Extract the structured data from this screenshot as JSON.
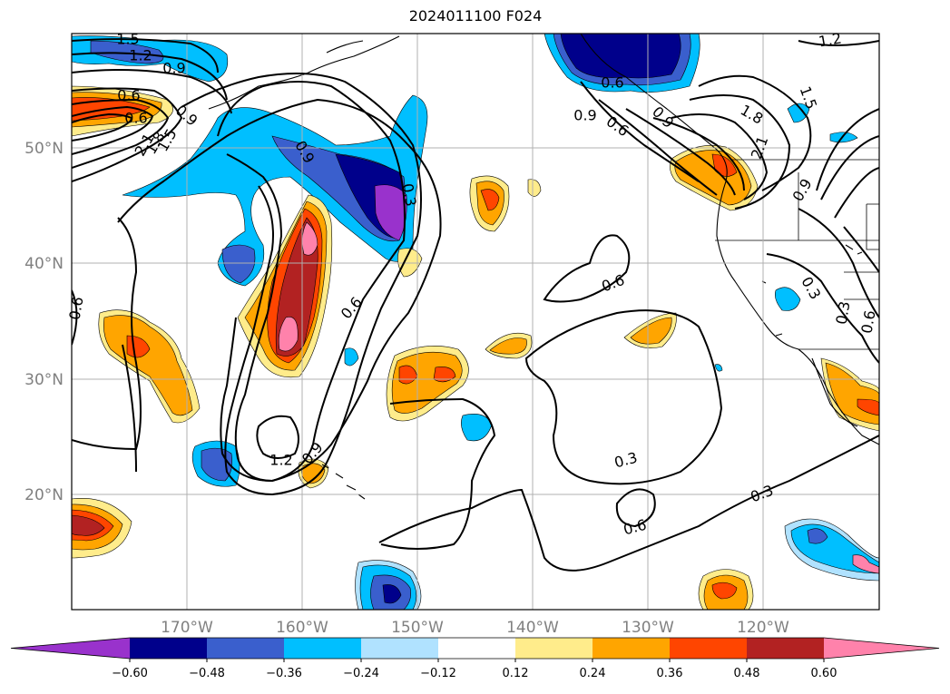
{
  "title": "2024011100 F024",
  "latitude_labels": [
    "50°N",
    "40°N",
    "30°N",
    "20°N"
  ],
  "longitude_labels": [
    "170°W",
    "160°W",
    "150°W",
    "140°W",
    "130°W",
    "120°W"
  ],
  "colorbar": {
    "tick_labels": [
      "−0.60",
      "−0.48",
      "−0.36",
      "−0.24",
      "−0.12",
      "0.12",
      "0.24",
      "0.36",
      "0.48",
      "0.60"
    ],
    "colors": [
      "#9932cc",
      "#00008b",
      "#3a5fcd",
      "#00bfff",
      "#b0e2ff",
      "#ffffff",
      "#ffec8b",
      "#ffa500",
      "#ff4500",
      "#b22222",
      "#ff82ab"
    ]
  },
  "contour_labels": [
    "1.5",
    "1.2",
    "0.9",
    "0.6",
    "0.9",
    "0.6",
    "0.9",
    "0.6",
    "0.3",
    "0.6",
    "1.2",
    "0.9",
    "0.3",
    "0.6",
    "0.3",
    "0.6",
    "0.9",
    "1.2",
    "1.5",
    "1.8",
    "2.1",
    "0.9",
    "0.6",
    "0.6",
    "0.9",
    "0.3",
    "0.3",
    "0.6",
    "2.1",
    "1.8",
    "1.5"
  ]
}
